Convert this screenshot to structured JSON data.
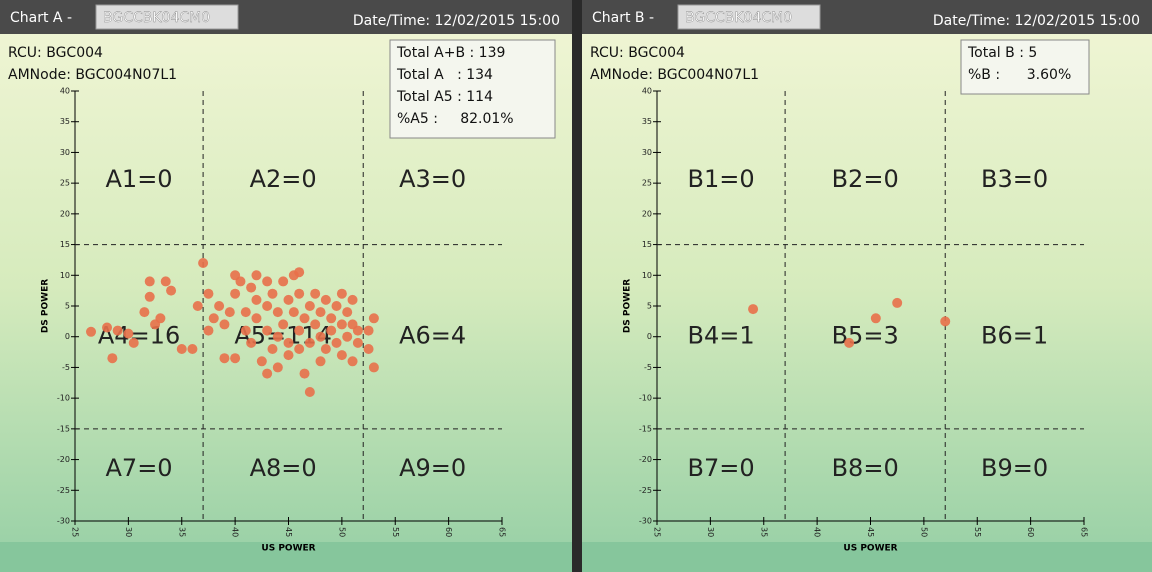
{
  "chart_data": [
    {
      "type": "scatter",
      "title": "Chart A -",
      "device": "BGCCBK04CM0",
      "datetime": "Date/Time: 12/02/2015 15:00",
      "info": [
        "RCU: BGC004",
        "AMNode: BGC004N07L1"
      ],
      "summary": [
        "Total A+B : 139",
        "Total A   : 134",
        "Total A5 : 114",
        "%A5 :     82.01%"
      ],
      "zones": [
        "A1=0",
        "A2=0",
        "A3=0",
        "A4=16",
        "A5=114",
        "A6=4",
        "A7=0",
        "A8=0",
        "A9=0"
      ],
      "xlabel": "US POWER",
      "ylabel": "DS POWER",
      "color": "#e8704a",
      "xlim": [
        25,
        65
      ],
      "ylim": [
        -30,
        40
      ],
      "xticks": [
        25,
        30,
        35,
        40,
        45,
        50,
        55,
        60,
        65
      ],
      "yticks": [
        -30,
        -25,
        -20,
        -15,
        -10,
        -5,
        0,
        5,
        10,
        15,
        20,
        25,
        30,
        35,
        40
      ],
      "x_dividers": [
        37,
        52
      ],
      "y_dividers": [
        15,
        -15
      ],
      "x": [
        26.5,
        28,
        28.5,
        29,
        30,
        30.5,
        31.5,
        32,
        32,
        33,
        33.5,
        34,
        35,
        36,
        36.5,
        32.5,
        37,
        37.5,
        37.5,
        38,
        38.5,
        39,
        39,
        39.5,
        40,
        40,
        40.5,
        41,
        41,
        41.5,
        41.5,
        42,
        42,
        42,
        42.5,
        43,
        43,
        43,
        43.5,
        43.5,
        44,
        44,
        44,
        44.5,
        44.5,
        45,
        45,
        45,
        45.5,
        45.5,
        46,
        46,
        46,
        46.5,
        46.5,
        47,
        47,
        47,
        47.5,
        47.5,
        48,
        48,
        48,
        48.5,
        48.5,
        49,
        49,
        49.5,
        49.5,
        50,
        50,
        50,
        50.5,
        50.5,
        51,
        51,
        51,
        51.5,
        51.5,
        40,
        43,
        46,
        52.5,
        53,
        53,
        52.5
      ],
      "values": [
        0.8,
        1.5,
        -3.5,
        1,
        0.5,
        -1,
        4,
        6.5,
        9,
        3,
        9,
        7.5,
        -2,
        -2,
        5,
        2,
        12,
        7,
        1,
        3,
        5,
        2,
        -3.5,
        4,
        -3.5,
        7,
        9,
        4,
        1,
        8,
        -1,
        10,
        6,
        3,
        -4,
        9,
        5,
        1,
        -2,
        7,
        4,
        0,
        -5,
        9,
        2,
        6,
        -3,
        -1,
        4,
        10,
        1,
        7,
        -2,
        -6,
        3,
        5,
        -1,
        -9,
        2,
        7,
        -4,
        4,
        0,
        6,
        -2,
        3,
        1,
        5,
        -1,
        7,
        2,
        -3,
        4,
        0,
        6,
        -4,
        2,
        1,
        -1,
        10,
        -6,
        10.5,
        -2,
        -5,
        3,
        1
      ]
    },
    {
      "type": "scatter",
      "title": "Chart B -",
      "device": "BGCCBK04CM0",
      "datetime": "Date/Time: 12/02/2015 15:00",
      "info": [
        "RCU: BGC004",
        "AMNode: BGC004N07L1"
      ],
      "summary": [
        "Total B : 5",
        "%B :      3.60%"
      ],
      "zones": [
        "B1=0",
        "B2=0",
        "B3=0",
        "B4=1",
        "B5=3",
        "B6=1",
        "B7=0",
        "B8=0",
        "B9=0"
      ],
      "xlabel": "US POWER",
      "ylabel": "DS POWER",
      "color": "#e8704a",
      "xlim": [
        25,
        65
      ],
      "ylim": [
        -30,
        40
      ],
      "xticks": [
        25,
        30,
        35,
        40,
        45,
        50,
        55,
        60,
        65
      ],
      "yticks": [
        -30,
        -25,
        -20,
        -15,
        -10,
        -5,
        0,
        5,
        10,
        15,
        20,
        25,
        30,
        35,
        40
      ],
      "x_dividers": [
        37,
        52
      ],
      "y_dividers": [
        15,
        -15
      ],
      "x": [
        34,
        43,
        45.5,
        47.5,
        52
      ],
      "values": [
        4.5,
        -1,
        3,
        5.5,
        2.5
      ]
    }
  ]
}
